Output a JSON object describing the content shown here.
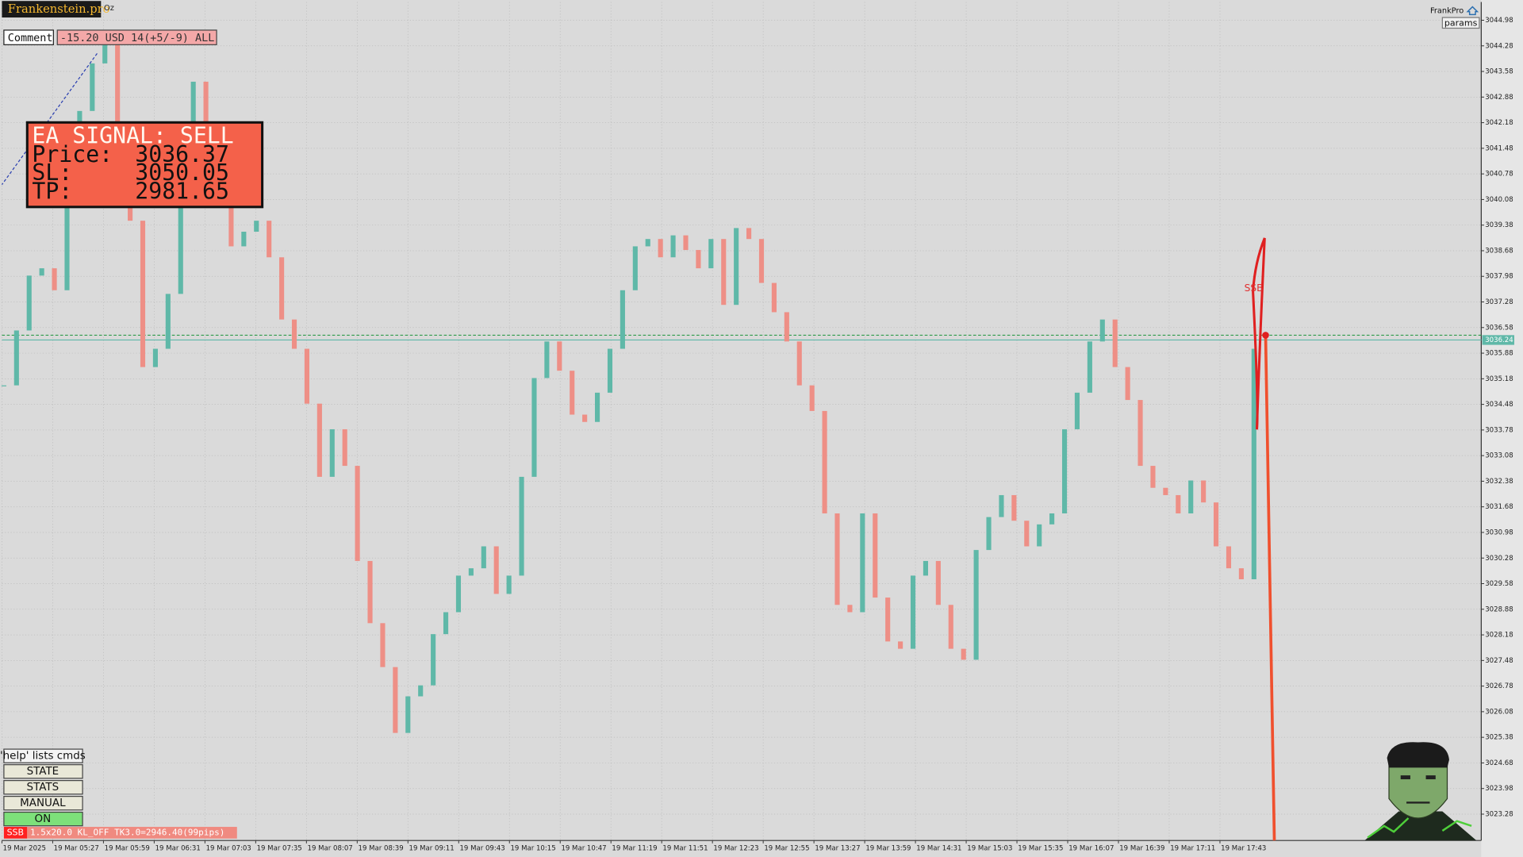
{
  "header": {
    "brand": "Frankenstein.pro",
    "symbol": "Oz",
    "comment_label": "Comment",
    "comment": "-15.20 USD 14(+5/-9) ALL",
    "account": "FrankPro",
    "params": "params"
  },
  "signal": {
    "title": "EA SIGNAL: SELL",
    "price_label": "Price:",
    "price": 3036.37,
    "sl_label": "SL:",
    "sl": 3050.05,
    "tp_label": "TP:",
    "tp": 2981.65,
    "marker": "SSB"
  },
  "controls": {
    "help": "'help' lists cmds",
    "buttons": [
      "STATE",
      "STATS",
      "MANUAL",
      "ON"
    ]
  },
  "status": {
    "tag": "SSB",
    "text": "1.5x20.0 KL_OFF TK3.0=2946.40(99pips)"
  },
  "chart_data": {
    "type": "candlestick",
    "time_labels": [
      "19 Mar 2025",
      "19 Mar 05:27",
      "19 Mar 05:59",
      "19 Mar 06:31",
      "19 Mar 07:03",
      "19 Mar 07:35",
      "19 Mar 08:07",
      "19 Mar 08:39",
      "19 Mar 09:11",
      "19 Mar 09:43",
      "19 Mar 10:15",
      "19 Mar 10:47",
      "19 Mar 11:19",
      "19 Mar 11:51",
      "19 Mar 12:23",
      "19 Mar 12:55",
      "19 Mar 13:27",
      "19 Mar 13:59",
      "19 Mar 14:31",
      "19 Mar 15:03",
      "19 Mar 15:35",
      "19 Mar 16:07",
      "19 Mar 16:39",
      "19 Mar 17:11",
      "19 Mar 17:43"
    ],
    "values": [
      3035.0,
      3036.5,
      3038.0,
      3038.2,
      3037.6,
      3040.5,
      3042.5,
      3043.8,
      3044.5,
      3042.0,
      3039.5,
      3035.5,
      3036.0,
      3037.5,
      3040.5,
      3043.3,
      3041.5,
      3040.0,
      3038.8,
      3039.2,
      3039.5,
      3038.5,
      3036.8,
      3036.0,
      3034.5,
      3032.5,
      3033.8,
      3032.8,
      3030.2,
      3028.5,
      3027.3,
      3025.5,
      3026.5,
      3026.8,
      3028.2,
      3028.8,
      3029.8,
      3030.0,
      3030.6,
      3029.3,
      3029.8,
      3032.5,
      3035.2,
      3036.2,
      3035.4,
      3034.2,
      3034.0,
      3034.8,
      3036.0,
      3037.6,
      3038.8,
      3039.0,
      3038.5,
      3039.1,
      3038.7,
      3038.2,
      3039.0,
      3037.2,
      3039.3,
      3039.0,
      3037.8,
      3037.0,
      3036.2,
      3035.0,
      3034.3,
      3031.5,
      3029.0,
      3028.8,
      3031.5,
      3029.2,
      3028.0,
      3027.8,
      3029.8,
      3030.2,
      3029.0,
      3027.8,
      3027.5,
      3030.5,
      3031.4,
      3032.0,
      3031.3,
      3030.6,
      3031.2,
      3031.5,
      3033.8,
      3034.8,
      3036.2,
      3036.8,
      3035.5,
      3034.6,
      3032.8,
      3032.2,
      3032.0,
      3031.5,
      3032.4,
      3031.8,
      3030.6,
      3030.0,
      3029.7,
      3036.0
    ],
    "up_color": "#5fb8a8",
    "down_color": "#ee8f86",
    "current_price": 3036.24,
    "ylim": [
      3022.56,
      3045.48
    ],
    "yticks": [
      3023.28,
      3023.98,
      3024.68,
      3025.38,
      3026.08,
      3026.78,
      3027.48,
      3028.18,
      3028.88,
      3029.58,
      3030.28,
      3030.98,
      3031.68,
      3032.38,
      3033.08,
      3033.78,
      3034.48,
      3035.18,
      3035.88,
      3036.58,
      3037.28,
      3037.98,
      3038.68,
      3039.38,
      3040.08,
      3040.78,
      3041.48,
      3042.18,
      3042.88,
      3043.58,
      3044.28,
      3044.98
    ],
    "grid": true
  }
}
